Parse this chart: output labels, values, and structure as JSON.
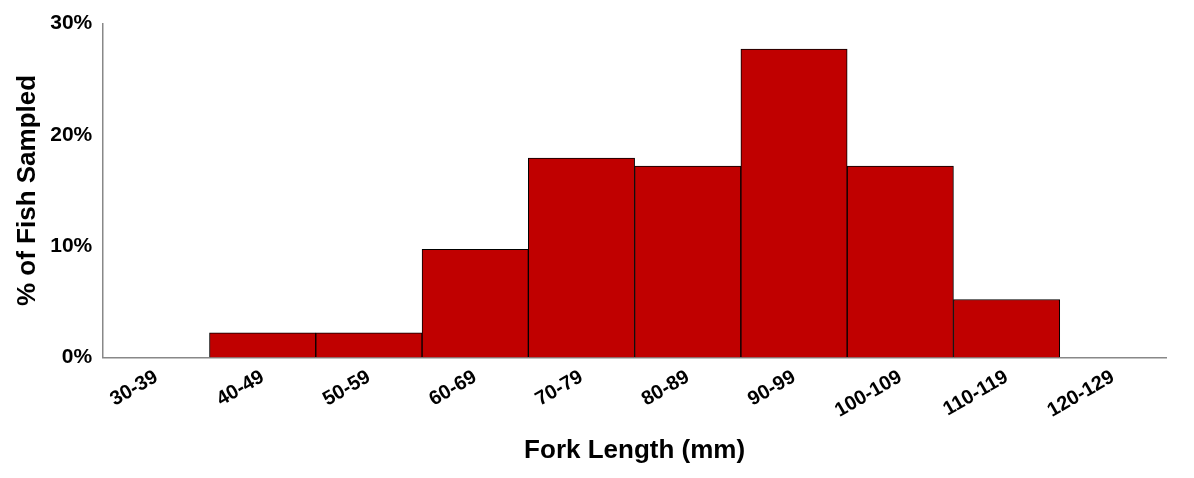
{
  "chart_data": {
    "type": "bar",
    "xlabel": "Fork Length (mm)",
    "ylabel": "% of Fish Sampled",
    "categories": [
      "30-39",
      "40-49",
      "50-59",
      "60-69",
      "70-79",
      "80-89",
      "90-99",
      "100-109",
      "110-119",
      "120-129"
    ],
    "values": [
      0,
      2.2,
      2.2,
      9.7,
      17.9,
      17.2,
      27.7,
      17.2,
      5.2,
      0
    ],
    "color": "#c00000",
    "ylim": [
      0,
      30
    ],
    "yticks": [
      {
        "value": 0,
        "label": "0%"
      },
      {
        "value": 10,
        "label": "10%"
      },
      {
        "value": 20,
        "label": "20%"
      },
      {
        "value": 30,
        "label": "30%"
      }
    ],
    "grid": false,
    "legend": false
  }
}
